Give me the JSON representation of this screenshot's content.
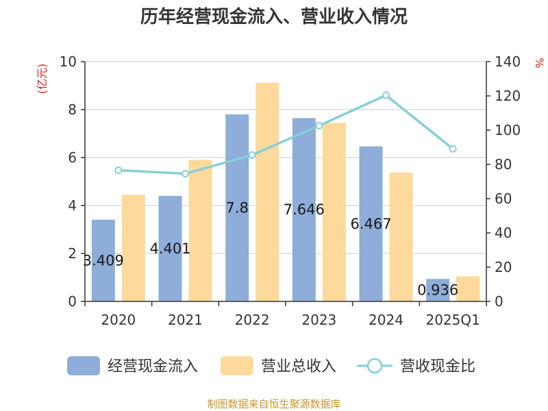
{
  "chart_data": {
    "type": "bar",
    "title": "历年经营现金流入、营业收入情况",
    "categories": [
      "2020",
      "2021",
      "2022",
      "2023",
      "2024",
      "2025Q1"
    ],
    "series": [
      {
        "name": "经营现金流入",
        "type": "bar",
        "axis": "left",
        "color": "#8eadd9",
        "values": [
          3.409,
          4.401,
          7.8,
          7.646,
          6.467,
          0.936
        ],
        "labels": [
          "3.409",
          "4.401",
          "7.8",
          "7.646",
          "6.467",
          "0.936"
        ]
      },
      {
        "name": "营业总收入",
        "type": "bar",
        "axis": "left",
        "color": "#fdd99b",
        "values": [
          4.45,
          5.9,
          9.12,
          7.45,
          5.37,
          1.05
        ]
      },
      {
        "name": "营收现金比",
        "type": "line",
        "axis": "right",
        "color": "#86cfd8",
        "values": [
          76.6,
          74.6,
          85.5,
          102.6,
          120.4,
          89.1
        ]
      }
    ],
    "y_left": {
      "unit": "(亿元)",
      "min": 0,
      "max": 10,
      "ticks": [
        0,
        2,
        4,
        6,
        8,
        10
      ]
    },
    "y_right": {
      "unit": "%",
      "min": 0,
      "max": 140,
      "ticks": [
        0,
        20,
        40,
        60,
        80,
        100,
        120,
        140
      ]
    },
    "grid": true,
    "legend_position": "bottom"
  },
  "footer": {
    "source": "制图数据来自恒生聚源数据库"
  }
}
